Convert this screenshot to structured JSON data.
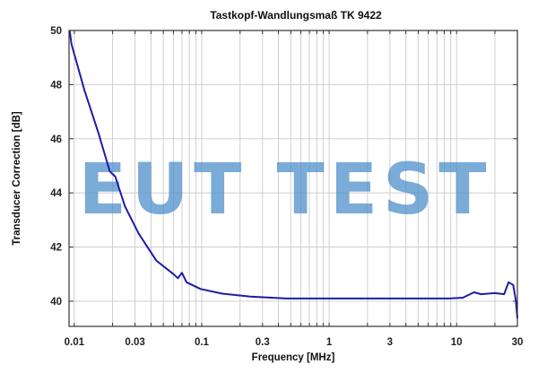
{
  "chart_data": {
    "type": "line",
    "title": "Tastkopf-Wandlungsmaß TK 9422",
    "xlabel": "Frequency [MHz]",
    "ylabel": "Transducer Correction [dB]",
    "x_scale": "log",
    "xlim": [
      0.0091,
      30
    ],
    "ylim": [
      39.07,
      50
    ],
    "x_ticks": [
      0.01,
      0.03,
      0.1,
      0.3,
      1,
      3,
      10,
      30
    ],
    "x_tick_labels": [
      "0.01",
      "0.03",
      "0.1",
      "0.3",
      "1",
      "3",
      "10",
      "30"
    ],
    "y_ticks": [
      40,
      42,
      44,
      46,
      48,
      50
    ],
    "y_tick_labels": [
      "40",
      "42",
      "44",
      "46",
      "48",
      "50"
    ],
    "grid": true,
    "legend": null,
    "series": [
      {
        "name": "TK 9422",
        "color": "#1c1ca8",
        "x": [
          0.0092,
          0.0095,
          0.012,
          0.0155,
          0.019,
          0.021,
          0.025,
          0.032,
          0.044,
          0.06,
          0.065,
          0.07,
          0.076,
          0.098,
          0.145,
          0.24,
          0.46,
          1.7,
          8.8,
          11.2,
          13.7,
          15.6,
          20,
          23.6,
          25.6,
          27.8,
          29.2,
          30
        ],
        "values": [
          50.0,
          49.5,
          47.8,
          46.2,
          44.8,
          44.6,
          43.5,
          42.5,
          41.5,
          41.0,
          40.85,
          41.05,
          40.7,
          40.45,
          40.28,
          40.17,
          40.1,
          40.1,
          40.1,
          40.13,
          40.33,
          40.26,
          40.3,
          40.26,
          40.7,
          40.6,
          40.03,
          39.37
        ]
      }
    ],
    "annotations": [
      "EUT TEST"
    ]
  },
  "watermark": "EUT TEST"
}
